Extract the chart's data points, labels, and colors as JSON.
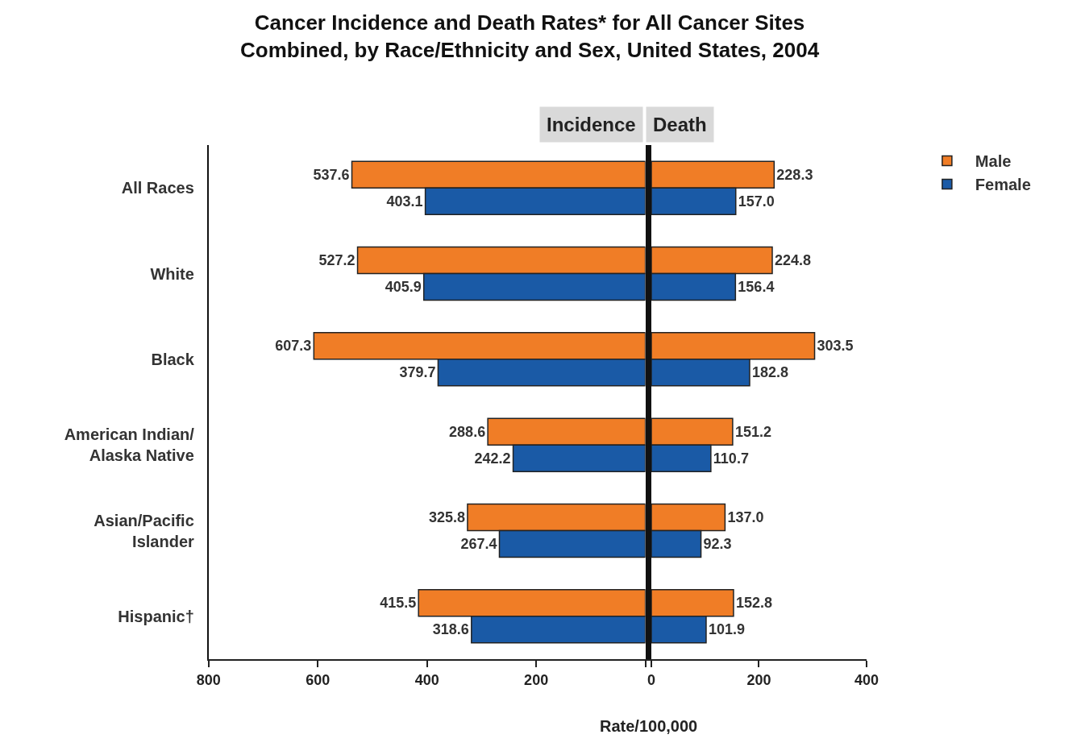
{
  "chart_data": [
    {
      "type": "bar",
      "orientation": "horizontal",
      "title": "Cancer Incidence and Death Rates* for All Cancer Sites\nCombined, by Race/Ethnicity and Sex, United States, 2004",
      "subtitle": "Incidence",
      "xlabel": "Rate/100,000",
      "categories": [
        "All Races",
        "White",
        "Black",
        "American Indian/\nAlaska Native",
        "Asian/Pacific\nIslander",
        "Hispanic†"
      ],
      "series": [
        {
          "color": "#f07d26",
          "values": [
            537.6,
            527.2,
            607.3,
            288.6,
            325.8,
            415.5
          ],
          "value_labels": [
            "537.6",
            "527.2",
            "607.3",
            "288.6",
            "325.8",
            "415.5"
          ]
        },
        {
          "color": "#1a5aa6",
          "values": [
            403.1,
            405.9,
            379.7,
            242.2,
            267.4,
            318.6
          ],
          "value_labels": [
            "403.1",
            "405.9",
            "379.7",
            "242.2",
            "267.4",
            "318.6"
          ]
        }
      ],
      "xlim": [
        800,
        0
      ],
      "xticks": [
        800,
        600,
        400,
        200,
        {
          "value": 0,
          "label": null
        }
      ],
      "grid": false,
      "legend": false
    },
    {
      "type": "bar",
      "orientation": "horizontal",
      "title": "Death",
      "categories": [
        null,
        null,
        null,
        null,
        null,
        null
      ],
      "series": [
        {
          "name": "Male",
          "color": "#f07d26",
          "values": [
            228.3,
            224.8,
            303.5,
            151.2,
            137.0,
            152.8
          ],
          "value_labels": [
            "228.3",
            "224.8",
            "303.5",
            "151.2",
            "137.0",
            "152.8"
          ]
        },
        {
          "name": "Female",
          "color": "#1a5aa6",
          "values": [
            157.0,
            156.4,
            182.8,
            110.7,
            92.3,
            101.9
          ],
          "value_labels": [
            "157.0",
            "156.4",
            "182.8",
            "110.7",
            "92.3",
            "101.9"
          ]
        }
      ],
      "xlim": [
        0,
        400
      ],
      "xticks": [
        0,
        200,
        400
      ],
      "grid": false,
      "legend": "top right",
      "tick_labels": "x"
    }
  ]
}
